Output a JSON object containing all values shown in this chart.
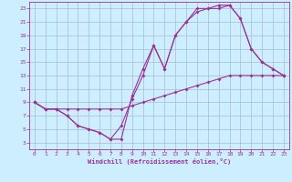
{
  "bg_color": "#cceeff",
  "line_color": "#993399",
  "grid_color": "#aabbcc",
  "xlabel": "Windchill (Refroidissement éolien,°C)",
  "xlabel_color": "#993399",
  "tick_color": "#993399",
  "xlim": [
    -0.5,
    23.5
  ],
  "ylim": [
    2,
    24
  ],
  "yticks": [
    3,
    5,
    7,
    9,
    11,
    13,
    15,
    17,
    19,
    21,
    23
  ],
  "xticks": [
    0,
    1,
    2,
    3,
    4,
    5,
    6,
    7,
    8,
    9,
    10,
    11,
    12,
    13,
    14,
    15,
    16,
    17,
    18,
    19,
    20,
    21,
    22,
    23
  ],
  "curve1_x": [
    0,
    1,
    2,
    3,
    4,
    5,
    6,
    7,
    8,
    9,
    10,
    11,
    12,
    13,
    14,
    15,
    16,
    17,
    18,
    19,
    20,
    21,
    22,
    23
  ],
  "curve1_y": [
    9,
    8,
    8,
    7,
    5.5,
    5.0,
    4.5,
    3.5,
    3.5,
    10.0,
    14.0,
    17.5,
    14.0,
    19.0,
    21.0,
    22.5,
    23.0,
    23.0,
    23.5,
    21.5,
    17.0,
    15.0,
    14.0,
    13.0
  ],
  "curve2_x": [
    0,
    1,
    2,
    3,
    4,
    5,
    6,
    7,
    8,
    9,
    10,
    11,
    12,
    13,
    14,
    15,
    16,
    17,
    18,
    19,
    20,
    21,
    22,
    23
  ],
  "curve2_y": [
    9,
    8,
    8,
    7,
    5.5,
    5.0,
    4.5,
    3.5,
    5.5,
    9.5,
    13.0,
    17.5,
    14.0,
    19.0,
    21.0,
    23.0,
    23.0,
    23.5,
    23.5,
    21.5,
    17.0,
    15.0,
    14.0,
    13.0
  ],
  "curve3_x": [
    0,
    1,
    2,
    3,
    4,
    5,
    6,
    7,
    8,
    9,
    10,
    11,
    12,
    13,
    14,
    15,
    16,
    17,
    18,
    19,
    20,
    21,
    22,
    23
  ],
  "curve3_y": [
    9,
    8,
    8,
    8,
    8.0,
    8.0,
    8.0,
    8.0,
    8.0,
    8.5,
    9.0,
    9.5,
    10.0,
    10.5,
    11.0,
    11.5,
    12.0,
    12.5,
    13.0,
    13.0,
    13.0,
    13.0,
    13.0,
    13.0
  ]
}
